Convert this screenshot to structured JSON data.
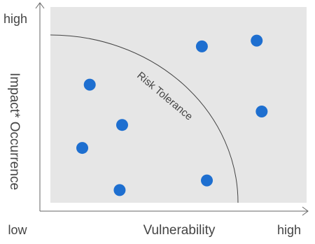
{
  "chart_data": {
    "type": "scatter",
    "x": [
      2.0,
      3.3,
      1.7,
      3.2,
      6.5,
      8.7,
      8.9,
      6.7
    ],
    "values": [
      6.6,
      4.5,
      3.3,
      1.1,
      8.6,
      8.9,
      5.2,
      1.6
    ],
    "color": "#1e6fd0",
    "xlim": [
      0,
      10
    ],
    "ylim": [
      0,
      10
    ],
    "xticks": [
      {
        "value": 0,
        "label": "low"
      },
      {
        "value": 10,
        "label": "high"
      }
    ],
    "yticks": [
      {
        "value": 10,
        "label": "high"
      }
    ],
    "xlabel": "Vulnerability",
    "ylabel": "Impact* Occurrence",
    "annotation": "Risk Tolerance"
  }
}
